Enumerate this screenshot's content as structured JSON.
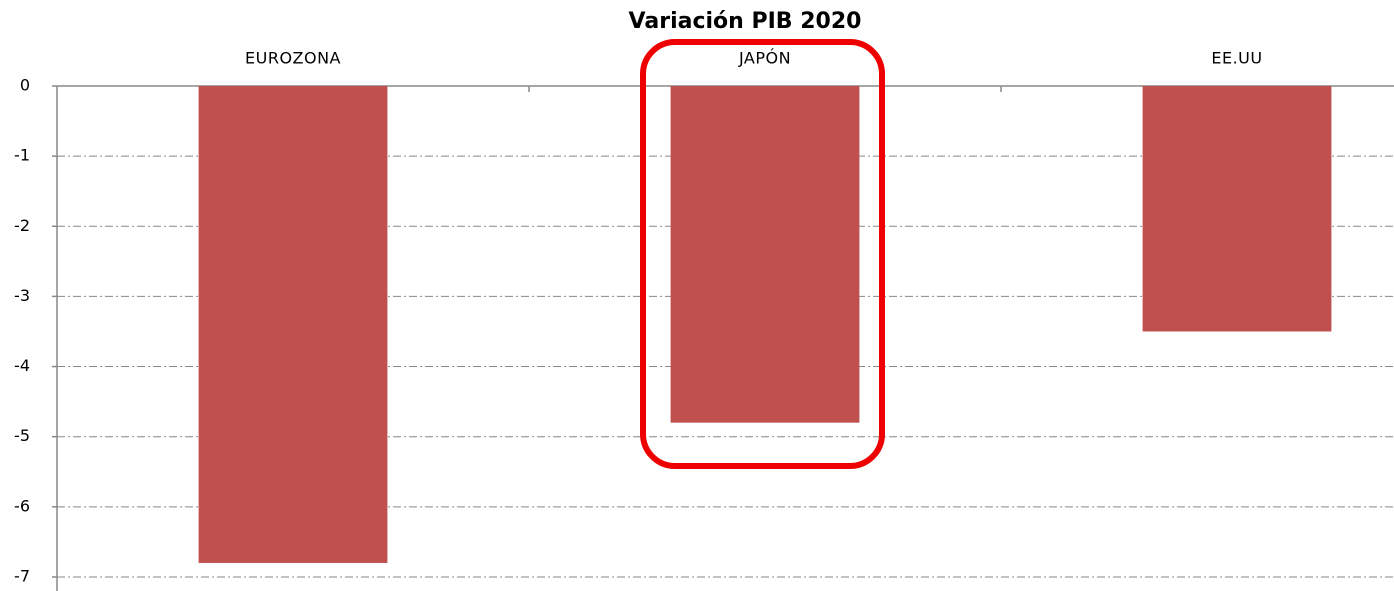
{
  "chart_data": {
    "type": "bar",
    "title": "Variación PIB 2020",
    "categories": [
      "EUROZONA",
      "JAPÓN",
      "EE.UU"
    ],
    "values": [
      -6.8,
      -4.8,
      -3.5
    ],
    "color": "#c0504d",
    "ylim": [
      -7.2,
      0
    ],
    "yticks": [
      0,
      -1,
      -2,
      -3,
      -4,
      -5,
      -6,
      -7
    ],
    "grid": true
  }
}
